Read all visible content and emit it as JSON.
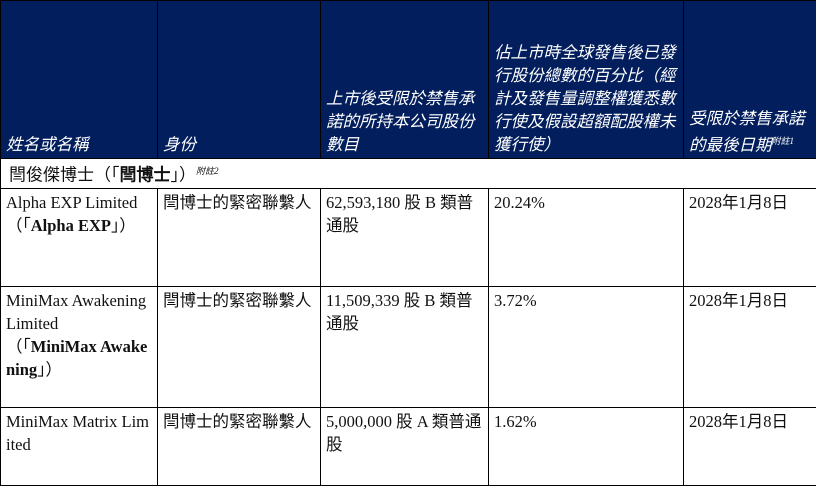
{
  "headers": [
    "姓名或名稱",
    "身份",
    "上市後受限於禁售承諾的所持本公司股份數目",
    "佔上市時全球發售後已發行股份總數的百分比（經計及發售量調整權獲悉數行使及假設超額配股權未獲行使）",
    "受限於禁售承諾的最後日期"
  ],
  "header_note": "附註1",
  "section": {
    "prefix": "閆俊傑博士（「",
    "bold": "閆博士",
    "suffix": "」）",
    "note": "附註2"
  },
  "header_bg": "#021e5c",
  "rows": [
    {
      "name": "Alpha EXP Limited",
      "name_open": "（「",
      "short": "Alpha EXP",
      "name_close": "」）",
      "role": "閆博士的緊密聯繫人",
      "shares": "62,593,180 股 B 類普通股",
      "percent": "20.24%",
      "date": "2028年1月8日"
    },
    {
      "name": "MiniMax Awakening Limited",
      "name_open": "（「",
      "short": "MiniMax Awakening",
      "name_close": "」）",
      "role": "閆博士的緊密聯繫人",
      "shares": "11,509,339 股 B 類普通股",
      "percent": "3.72%",
      "date": "2028年1月8日"
    },
    {
      "name": "MiniMax Matrix Limited",
      "role": "閆博士的緊密聯繫人",
      "shares": "5,000,000 股 A 類普通股",
      "percent": "1.62%",
      "date": "2028年1月8日"
    }
  ]
}
